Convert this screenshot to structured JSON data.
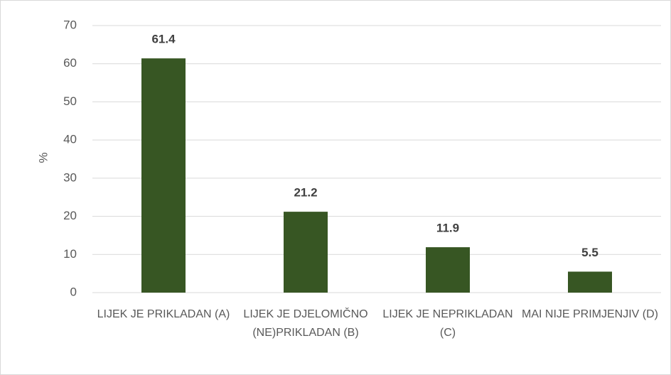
{
  "chart_data": {
    "type": "bar",
    "ylabel": "%",
    "categories": [
      "LIJEK JE PRIKLADAN (A)",
      "LIJEK JE DJELOMIČNO (NE)PRIKLADAN (B)",
      "LIJEK JE NEPRIKLADAN (C)",
      "MAI NIJE PRIMJENJIV (D)"
    ],
    "values": [
      61.4,
      21.2,
      11.9,
      5.5
    ],
    "color": "#375623",
    "ylim": [
      0,
      70
    ],
    "yticks": [
      0,
      10,
      20,
      30,
      40,
      50,
      60,
      70
    ],
    "grid": true
  }
}
